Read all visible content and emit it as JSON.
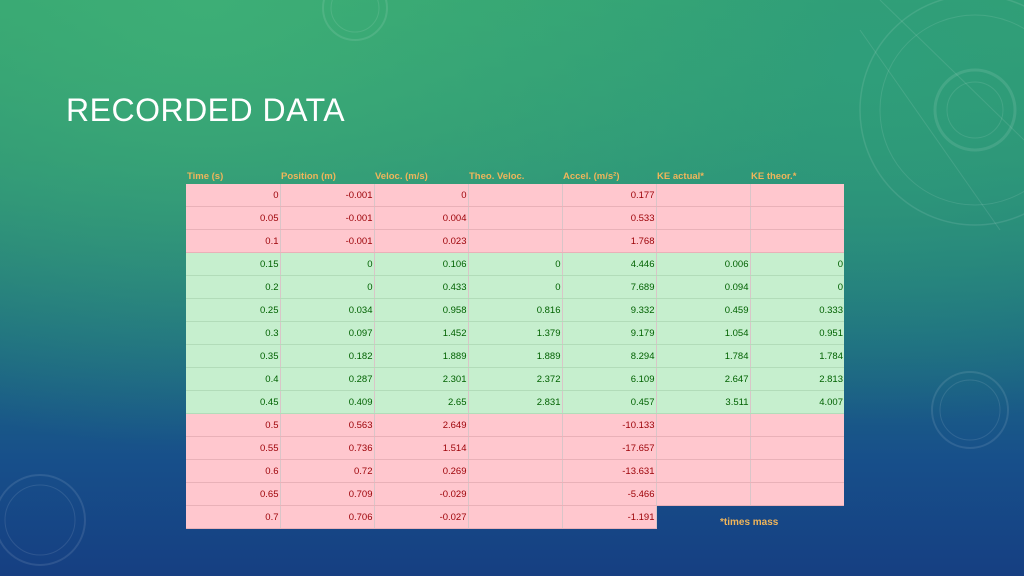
{
  "slide": {
    "title": "RECORDED DATA",
    "footnote": "*times mass"
  },
  "table": {
    "headers": [
      "Time (s)",
      "Position (m)",
      "Veloc. (m/s)",
      "Theo. Veloc.",
      "Accel. (m/s²)",
      "KE actual*",
      "KE theor.*"
    ],
    "rows": [
      {
        "status": "red",
        "cells": [
          "0",
          "-0.001",
          "0",
          "",
          "0.177",
          "",
          ""
        ]
      },
      {
        "status": "red",
        "cells": [
          "0.05",
          "-0.001",
          "0.004",
          "",
          "0.533",
          "",
          ""
        ]
      },
      {
        "status": "red",
        "cells": [
          "0.1",
          "-0.001",
          "0.023",
          "",
          "1.768",
          "",
          ""
        ]
      },
      {
        "status": "green",
        "cells": [
          "0.15",
          "0",
          "0.106",
          "0",
          "4.446",
          "0.006",
          "0"
        ]
      },
      {
        "status": "green",
        "cells": [
          "0.2",
          "0",
          "0.433",
          "0",
          "7.689",
          "0.094",
          "0"
        ]
      },
      {
        "status": "green",
        "cells": [
          "0.25",
          "0.034",
          "0.958",
          "0.816",
          "9.332",
          "0.459",
          "0.333"
        ]
      },
      {
        "status": "green",
        "cells": [
          "0.3",
          "0.097",
          "1.452",
          "1.379",
          "9.179",
          "1.054",
          "0.951"
        ]
      },
      {
        "status": "green",
        "cells": [
          "0.35",
          "0.182",
          "1.889",
          "1.889",
          "8.294",
          "1.784",
          "1.784"
        ]
      },
      {
        "status": "green",
        "cells": [
          "0.4",
          "0.287",
          "2.301",
          "2.372",
          "6.109",
          "2.647",
          "2.813"
        ]
      },
      {
        "status": "green",
        "cells": [
          "0.45",
          "0.409",
          "2.65",
          "2.831",
          "0.457",
          "3.511",
          "4.007"
        ]
      },
      {
        "status": "red",
        "cells": [
          "0.5",
          "0.563",
          "2.649",
          "",
          "-10.133",
          "",
          ""
        ]
      },
      {
        "status": "red",
        "cells": [
          "0.55",
          "0.736",
          "1.514",
          "",
          "-17.657",
          "",
          ""
        ]
      },
      {
        "status": "red",
        "cells": [
          "0.6",
          "0.72",
          "0.269",
          "",
          "-13.631",
          "",
          ""
        ]
      },
      {
        "status": "red",
        "cells": [
          "0.65",
          "0.709",
          "-0.029",
          "",
          "-5.466",
          "",
          ""
        ]
      },
      {
        "status": "red",
        "cells": [
          "0.7",
          "0.706",
          "-0.027",
          "",
          "-1.191",
          "",
          ""
        ]
      }
    ]
  }
}
